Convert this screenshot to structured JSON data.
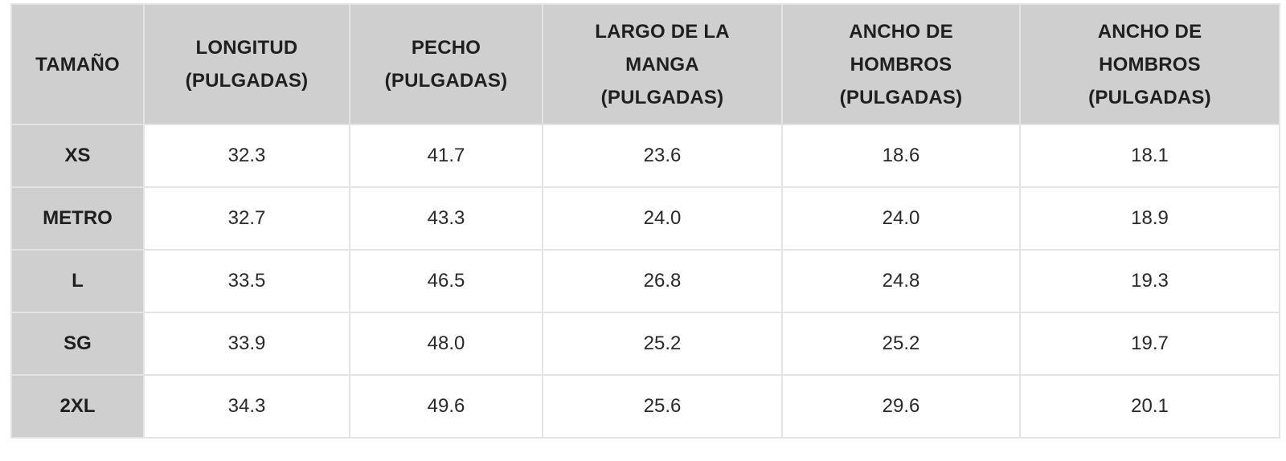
{
  "table": {
    "headers": [
      [
        "TAMAÑO"
      ],
      [
        "LONGITUD",
        "(PULGADAS)"
      ],
      [
        "PECHO",
        "(PULGADAS)"
      ],
      [
        "LARGO DE LA",
        "MANGA",
        "(PULGADAS)"
      ],
      [
        "ANCHO DE",
        "HOMBROS",
        "(PULGADAS)"
      ],
      [
        "ANCHO DE",
        "HOMBROS",
        "(PULGADAS)"
      ]
    ],
    "rows": [
      {
        "size": "XS",
        "values": [
          "32.3",
          "41.7",
          "23.6",
          "18.6",
          "18.1"
        ]
      },
      {
        "size": "METRO",
        "values": [
          "32.7",
          "43.3",
          "24.0",
          "24.0",
          "18.9"
        ]
      },
      {
        "size": "L",
        "values": [
          "33.5",
          "46.5",
          "26.8",
          "24.8",
          "19.3"
        ]
      },
      {
        "size": "SG",
        "values": [
          "33.9",
          "48.0",
          "25.2",
          "25.2",
          "19.7"
        ]
      },
      {
        "size": "2XL",
        "values": [
          "34.3",
          "49.6",
          "25.6",
          "29.6",
          "20.1"
        ]
      }
    ]
  },
  "colors": {
    "header_bg": "#cfcfcf",
    "cell_bg": "#ffffff",
    "border": "#e4e4e4",
    "text": "#1f1f1f"
  }
}
